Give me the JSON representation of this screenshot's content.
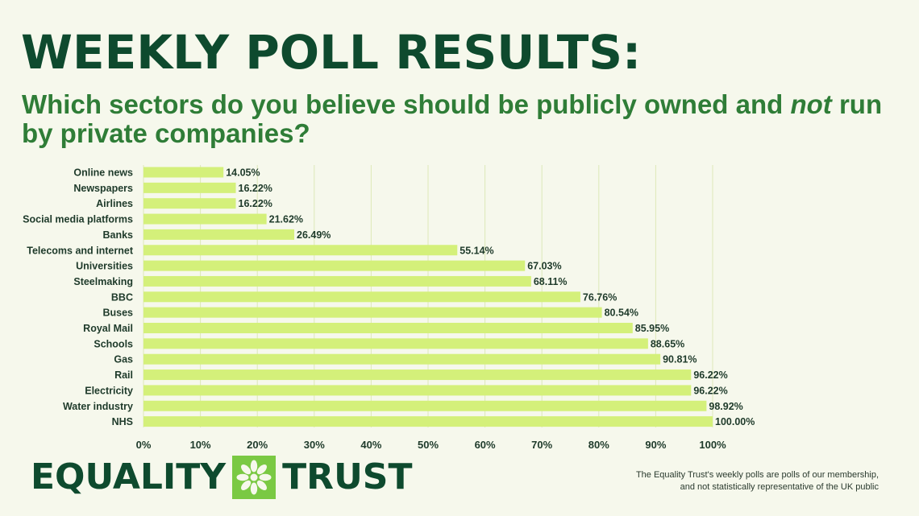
{
  "header": {
    "title": "WEEKLY POLL RESULTS:",
    "subtitle_before": "Which sectors do you believe should be publicly owned and ",
    "subtitle_emphasis": "not",
    "subtitle_after": " run by private companies?"
  },
  "chart_data": {
    "type": "bar",
    "orientation": "horizontal",
    "categories": [
      "Online news",
      "Newspapers",
      "Airlines",
      "Social media platforms",
      "Banks",
      "Telecoms and internet",
      "Universities",
      "Steelmaking",
      "BBC",
      "Buses",
      "Royal Mail",
      "Schools",
      "Gas",
      "Rail",
      "Electricity",
      "Water industry",
      "NHS"
    ],
    "values": [
      14.05,
      16.22,
      16.22,
      21.62,
      26.49,
      55.14,
      67.03,
      68.11,
      76.76,
      80.54,
      85.95,
      88.65,
      90.81,
      96.22,
      96.22,
      98.92,
      100.0
    ],
    "value_labels": [
      "14.05%",
      "16.22%",
      "16.22%",
      "21.62%",
      "26.49%",
      "55.14%",
      "67.03%",
      "68.11%",
      "76.76%",
      "80.54%",
      "85.95%",
      "88.65%",
      "90.81%",
      "96.22%",
      "96.22%",
      "98.92%",
      "100.00%"
    ],
    "xticks": [
      "0%",
      "10%",
      "20%",
      "30%",
      "40%",
      "50%",
      "60%",
      "70%",
      "80%",
      "90%",
      "100%"
    ],
    "xlim": [
      0,
      100
    ],
    "grid": true,
    "colors": {
      "bar": "#d4f07a",
      "grid": "#dde8b8",
      "text": "#1e3a2a"
    }
  },
  "logo": {
    "word1": "EQUALITY",
    "word2": "TRUST",
    "icon": "asterisk-flower-icon",
    "colors": {
      "box": "#7ac943",
      "flower": "#f6f8ec"
    }
  },
  "footnote": {
    "line1": "The Equality Trust's weekly polls are polls of our membership,",
    "line2": "and not statistically representative of the UK public"
  }
}
